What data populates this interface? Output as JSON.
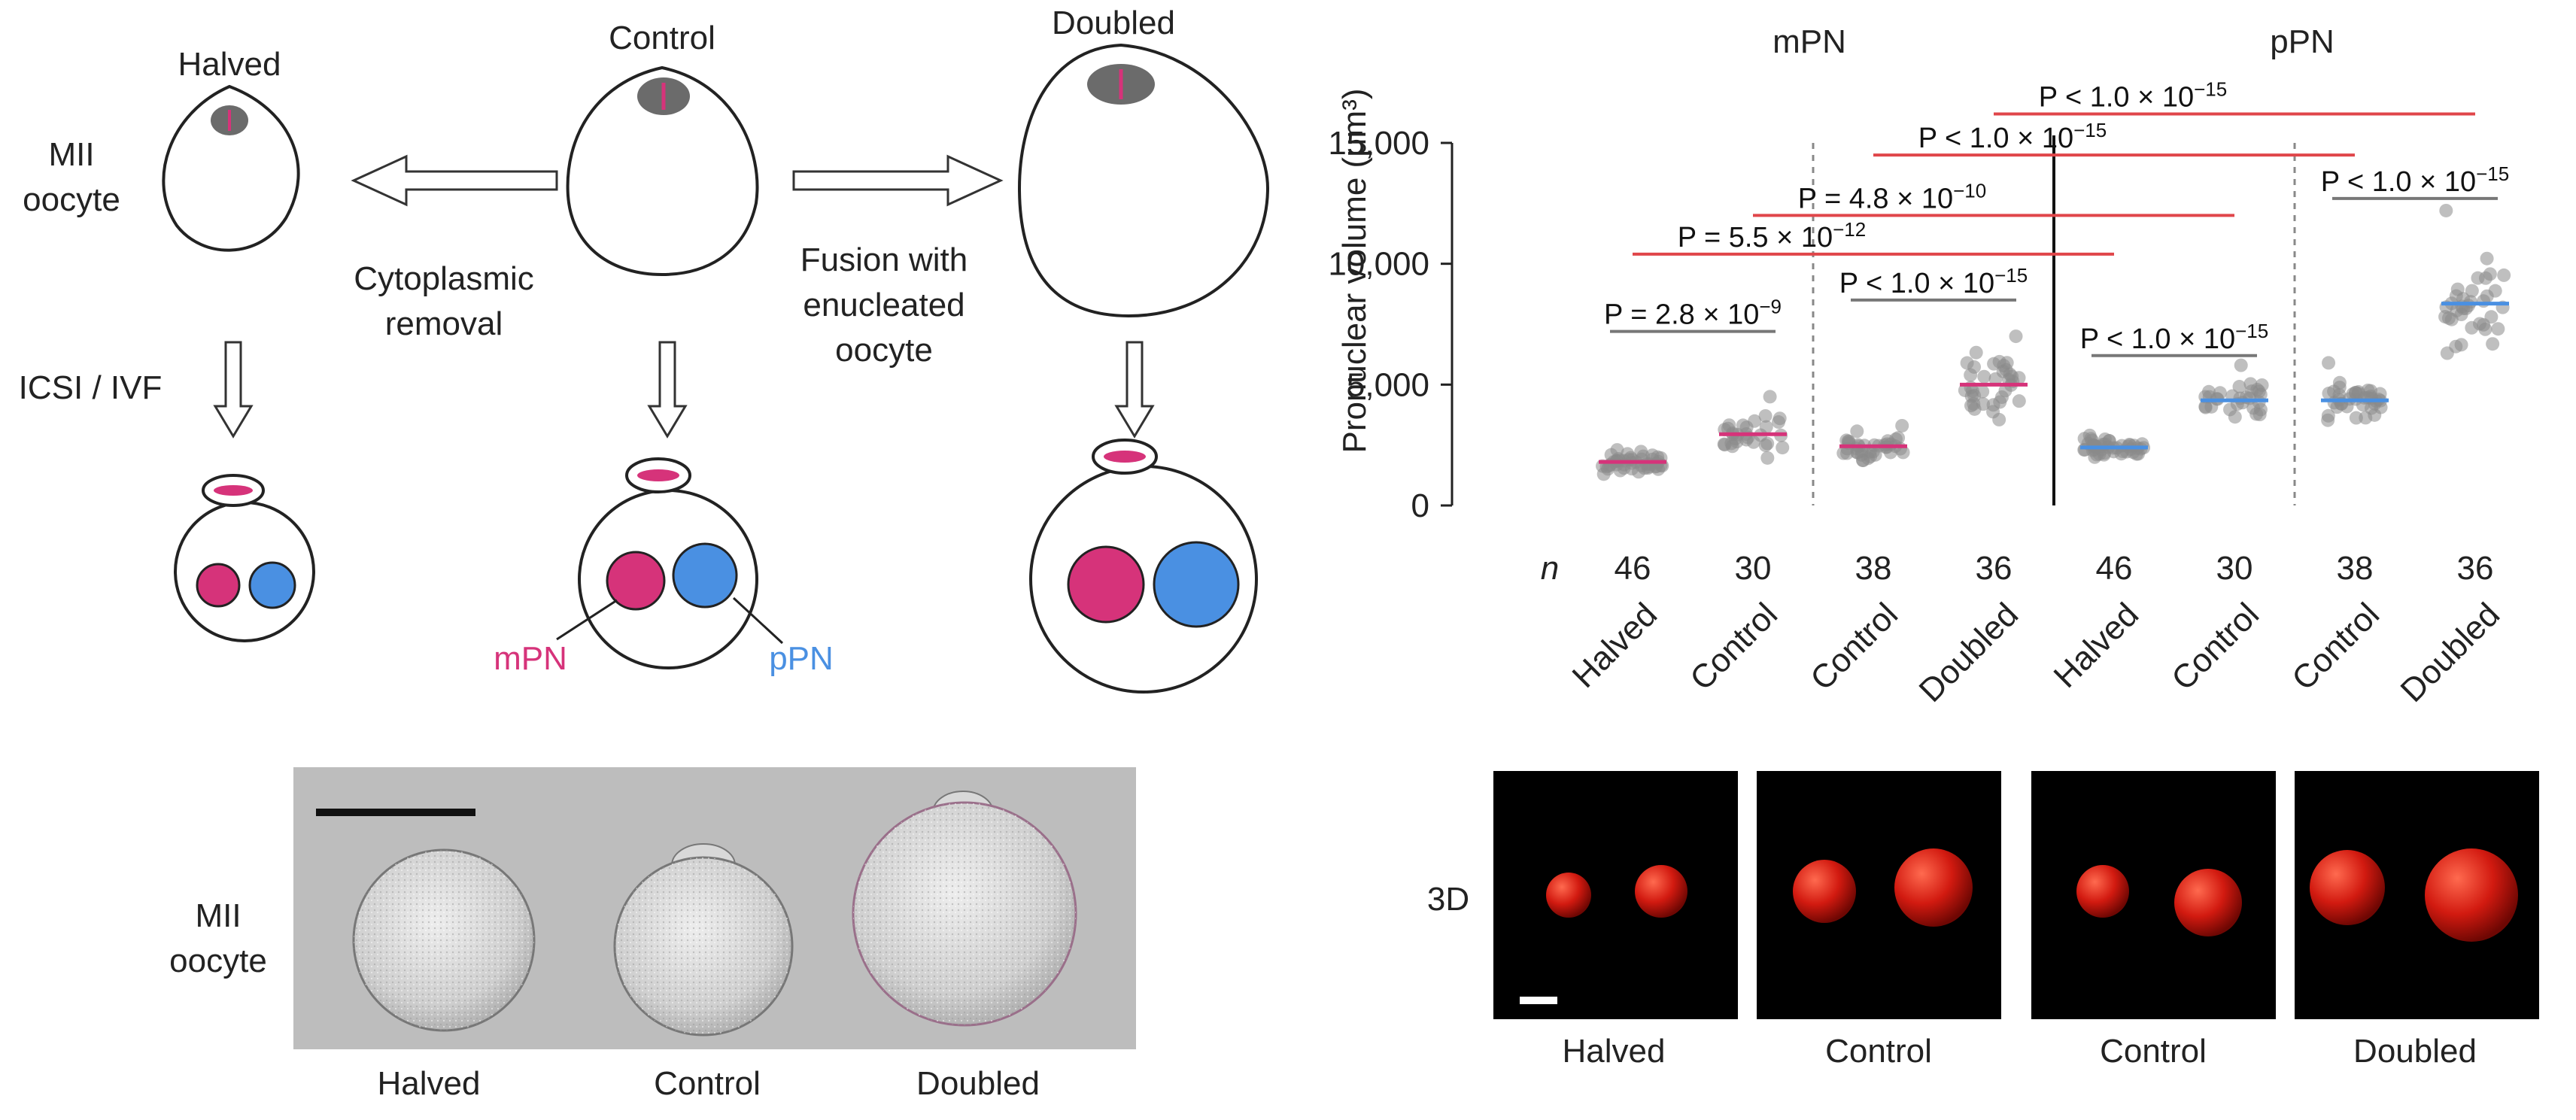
{
  "schematic": {
    "labels": {
      "halved": "Halved",
      "control": "Control",
      "doubled": "Doubled",
      "mii_line1": "MII",
      "mii_line2": "oocyte",
      "cyto_line1": "Cytoplasmic",
      "cyto_line2": "removal",
      "fusion_line1": "Fusion with",
      "fusion_line2": "enucleated",
      "fusion_line3": "oocyte",
      "icsi": "ICSI / IVF",
      "mpn": "mPN",
      "ppn": "pPN"
    },
    "colors": {
      "mpn": "#d6337a",
      "ppn": "#4a90e2",
      "spindle": "#6b6b6b"
    }
  },
  "micrograph": {
    "side_line1": "MII",
    "side_line2": "oocyte",
    "captions": [
      "Halved",
      "Control",
      "Doubled"
    ]
  },
  "render3d": {
    "side_label": "3D",
    "captions": [
      "Halved",
      "Control",
      "Control",
      "Doubled"
    ]
  },
  "chart_data": {
    "type": "scatter",
    "ylabel": "Pronuclear volume (μm³)",
    "ylim": [
      0,
      15000
    ],
    "yticks": [
      "0",
      "5,000",
      "10,000",
      "15,000"
    ],
    "group_labels": [
      "mPN",
      "pPN"
    ],
    "n_prefix": "n",
    "categories": [
      "Halved",
      "Control",
      "Control",
      "Doubled",
      "Halved",
      "Control",
      "Control",
      "Doubled"
    ],
    "n": [
      "46",
      "30",
      "38",
      "36",
      "46",
      "30",
      "38",
      "36"
    ],
    "medians": [
      1800,
      2950,
      2450,
      5000,
      2400,
      4350,
      4350,
      8350
    ],
    "spread": [
      320,
      700,
      400,
      950,
      320,
      500,
      560,
      1250
    ],
    "max_points": [
      2300,
      4500,
      3300,
      7000,
      2900,
      5800,
      5900,
      12200
    ],
    "series_colors": [
      "#d6337a",
      "#d6337a",
      "#d6337a",
      "#d6337a",
      "#4a90e2",
      "#4a90e2",
      "#4a90e2",
      "#4a90e2"
    ],
    "comparisons": [
      {
        "from": 0,
        "to": 1,
        "p": "P = 2.8 × 10",
        "exp": "−9",
        "line": "gray",
        "y": 7200
      },
      {
        "from": 2,
        "to": 3,
        "p": "P < 1.0 × 10",
        "exp": "−15",
        "line": "gray",
        "y": 8500
      },
      {
        "from": 4,
        "to": 5,
        "p": "P < 1.0 × 10",
        "exp": "−15",
        "line": "gray",
        "y": 6200
      },
      {
        "from": 6,
        "to": 7,
        "p": "P < 1.0 × 10",
        "exp": "−15",
        "line": "gray",
        "y": 12700
      },
      {
        "from": 0,
        "to": 4,
        "p": "P = 5.5 × 10",
        "exp": "−12",
        "line": "red",
        "y": 10400
      },
      {
        "from": 1,
        "to": 5,
        "p": "P = 4.8 × 10",
        "exp": "−10",
        "line": "red",
        "y": 12000
      },
      {
        "from": 2,
        "to": 6,
        "p": "P < 1.0 × 10",
        "exp": "−15",
        "line": "red",
        "y": 14500
      },
      {
        "from": 3,
        "to": 7,
        "p": "P < 1.0 × 10",
        "exp": "−15",
        "line": "red",
        "y": 16200
      }
    ]
  }
}
